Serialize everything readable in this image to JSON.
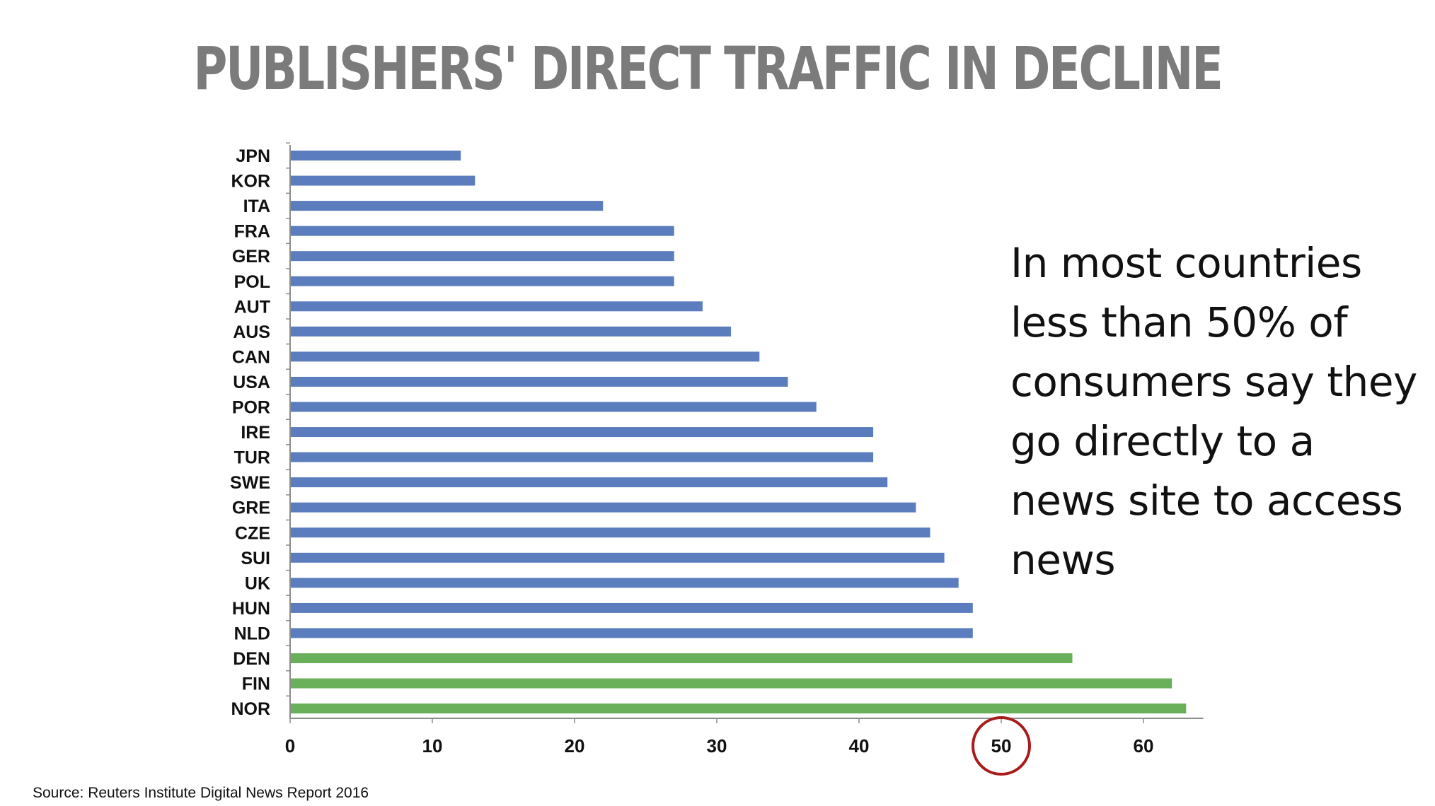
{
  "page": {
    "title": "PUBLISHERS' DIRECT TRAFFIC IN DECLINE",
    "callout": "In most countries less than 50% of consumers say they go directly to a news site to access news",
    "source": "Source: Reuters Institute Digital News Report 2016"
  },
  "colors": {
    "bar_default": "#5b7dbd",
    "bar_highlight": "#6aaf59",
    "circle": "#a81c1c",
    "axis": "#8c8c8c",
    "title": "#7b7b7b"
  },
  "chart_data": {
    "type": "bar",
    "orientation": "horizontal",
    "title": "",
    "xlabel": "",
    "ylabel": "",
    "xlim": [
      0,
      64
    ],
    "xticks": [
      0,
      10,
      20,
      30,
      40,
      50,
      60
    ],
    "highlighted_tick": 50,
    "grid": false,
    "categories": [
      "JPN",
      "KOR",
      "ITA",
      "FRA",
      "GER",
      "POL",
      "AUT",
      "AUS",
      "CAN",
      "USA",
      "POR",
      "IRE",
      "TUR",
      "SWE",
      "GRE",
      "CZE",
      "SUI",
      "UK",
      "HUN",
      "NLD",
      "DEN",
      "FIN",
      "NOR"
    ],
    "values": [
      12,
      13,
      22,
      27,
      27,
      27,
      29,
      31,
      33,
      35,
      37,
      41,
      41,
      42,
      44,
      45,
      46,
      47,
      48,
      48,
      55,
      62,
      63
    ],
    "highlighted_categories": [
      "DEN",
      "FIN",
      "NOR"
    ]
  }
}
